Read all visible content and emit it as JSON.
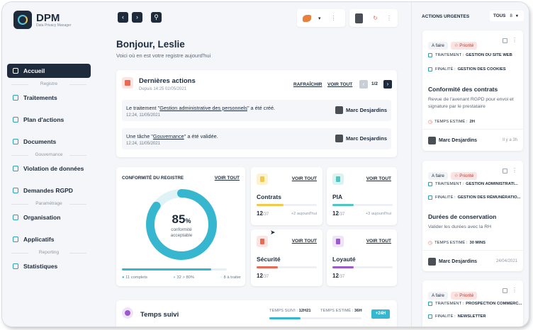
{
  "app": {
    "name": "DPM",
    "subtitle": "Data Privacy Manager"
  },
  "sidebar": {
    "items": [
      {
        "label": "Accueil",
        "icon": "home-icon",
        "active": true
      },
      {
        "section": "Registre"
      },
      {
        "label": "Traitements",
        "icon": "list-icon"
      },
      {
        "label": "Plan d'actions",
        "icon": "checklist-icon"
      },
      {
        "label": "Documents",
        "icon": "document-icon"
      },
      {
        "section": "Gouvernance"
      },
      {
        "label": "Violation de données",
        "icon": "shield-icon"
      },
      {
        "label": "Demandes RGPD",
        "icon": "inbox-icon"
      },
      {
        "section": "Paramétrage"
      },
      {
        "label": "Organisation",
        "icon": "folder-icon"
      },
      {
        "label": "Applicatifs",
        "icon": "app-icon"
      },
      {
        "section": "Reporting"
      },
      {
        "label": "Statistiques",
        "icon": "chart-icon"
      }
    ]
  },
  "greeting": {
    "title": "Bonjour, Leslie",
    "subtitle": "Voici où en est votre registre aujourd'hui"
  },
  "recent": {
    "title": "Dernières actions",
    "since": "Depuis 14:25 02/05/2021",
    "refresh": "RAFRAÎCHIR",
    "see_all": "VOIR TOUT",
    "page": "1/2",
    "rows": [
      {
        "prefix": "Le traitement \"",
        "link": "Gestion administrative des personnels",
        "suffix": "\" a été créé.",
        "time": "12:24, 11/05/2021",
        "user": "Marc Desjardins"
      },
      {
        "prefix": "Une tâche \"",
        "link": "Gouvernance",
        "suffix": "\" a été validée.",
        "time": "12:24, 11/05/2021",
        "user": "Marc Desjardins"
      }
    ]
  },
  "compliance": {
    "title": "CONFORMITÉ DU REGISTRE",
    "see_all": "VOIR TOUT",
    "percent": 85,
    "percent_text": "85",
    "percent_unit": "%",
    "label": "conformité acceptable",
    "legend": [
      "11 complets",
      "32 > 80%",
      "8 à traiter"
    ],
    "colors": {
      "ring": "#37b7cf",
      "ring_bg": "#dff3f7"
    }
  },
  "minis": [
    {
      "title": "Contrats",
      "value": "12",
      "total": "/37",
      "note": "+2 aujourd'hui",
      "link": "VOIR TOUT",
      "color": "#f2c94c",
      "icon_bg": "#fdf3d1",
      "fill": 0.45,
      "icon": "contract-icon"
    },
    {
      "title": "PIA",
      "value": "12",
      "total": "/37",
      "note": "+3 aujourd'hui",
      "link": "VOIR TOUT",
      "color": "#4fc6c2",
      "icon_bg": "#dcf3f2",
      "fill": 0.35,
      "icon": "pia-icon"
    },
    {
      "title": "Sécurité",
      "value": "12",
      "total": "/37",
      "note": "",
      "link": "VOIR TOUT",
      "color": "#e86a55",
      "icon_bg": "#fde4e0",
      "fill": 0.35,
      "icon": "lock-icon"
    },
    {
      "title": "Loyauté",
      "value": "12",
      "total": "/37",
      "note": "",
      "link": "VOIR TOUT",
      "color": "#9b59d0",
      "icon_bg": "#efe2f9",
      "fill": 0.35,
      "icon": "people-icon"
    }
  ],
  "time_card": {
    "title": "Temps suivi",
    "spent_label": "TEMPS SUIVI :",
    "spent": "12H21",
    "estimated_label": "TEMPS ESTIMÉ :",
    "estimated": "36H",
    "badge": "+24H"
  },
  "urgent": {
    "title": "ACTIONS URGENTES",
    "filter": "TOUS",
    "count": "8",
    "cards": [
      {
        "status": "A faire",
        "priority": "Priorité",
        "traitement_label": "TRAITEMENT :",
        "traitement": "GESTION DU SITE WEB",
        "finalite_label": "FINALITÉ :",
        "finalite": "GESTION DES COOKIES",
        "title": "Conformité des contrats",
        "desc": "Revue de l'avenant RGPD pour envoi et signature par le prestataire",
        "time_label": "TEMPS ESTIMÉ :",
        "time": "2H",
        "user": "Marc Desjardins",
        "when": "Il y a 3h"
      },
      {
        "status": "A faire",
        "priority": "Priorité",
        "traitement_label": "TRAITEMENT :",
        "traitement": "GESTION ADMINISTRATI...",
        "finalite_label": "FINALITÉ :",
        "finalite": "GESTION DES RÉMUNÉRATIO...",
        "title": "Durées de conservation",
        "desc": "Valider les durées avec la RH",
        "time_label": "TEMPS ESTIMÉ :",
        "time": "30 MINS",
        "user": "Marc Desjardins",
        "when": "24/04/2021"
      },
      {
        "status": "A faire",
        "priority": "Priorité",
        "traitement_label": "TRAITEMENT :",
        "traitement": "PROSPECTION COMMERC...",
        "finalite_label": "FINALITÉ :",
        "finalite": "NEWSLETTER"
      }
    ]
  }
}
